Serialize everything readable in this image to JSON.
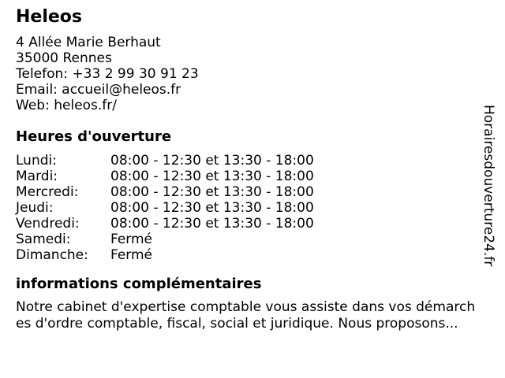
{
  "company": {
    "name": "Heleos",
    "address_line1": "4 Allée Marie Berhaut",
    "address_line2": "35000 Rennes",
    "phone_line": "Telefon: +33 2 99 30 91 23",
    "email_line": "Email: accueil@heleos.fr",
    "web_line": "Web: heleos.fr/"
  },
  "hours": {
    "heading": "Heures d'ouverture",
    "rows": [
      {
        "day": "Lundi:",
        "time": "08:00 - 12:30 et 13:30 - 18:00"
      },
      {
        "day": "Mardi:",
        "time": "08:00 - 12:30 et 13:30 - 18:00"
      },
      {
        "day": "Mercredi:",
        "time": "08:00 - 12:30 et 13:30 - 18:00"
      },
      {
        "day": "Jeudi:",
        "time": "08:00 - 12:30 et 13:30 - 18:00"
      },
      {
        "day": "Vendredi:",
        "time": "08:00 - 12:30 et 13:30 - 18:00"
      },
      {
        "day": "Samedi:",
        "time": "Fermé"
      },
      {
        "day": "Dimanche:",
        "time": "Fermé"
      }
    ]
  },
  "info": {
    "heading": "informations complémentaires",
    "text": "Notre cabinet d'expertise comptable vous assiste dans vos démarches d'ordre comptable, fiscal, social et juridique. Nous proposons..."
  },
  "watermark": {
    "text": "Horairesdouverture24.fr"
  },
  "colors": {
    "background": "#ffffff",
    "text": "#000000"
  }
}
